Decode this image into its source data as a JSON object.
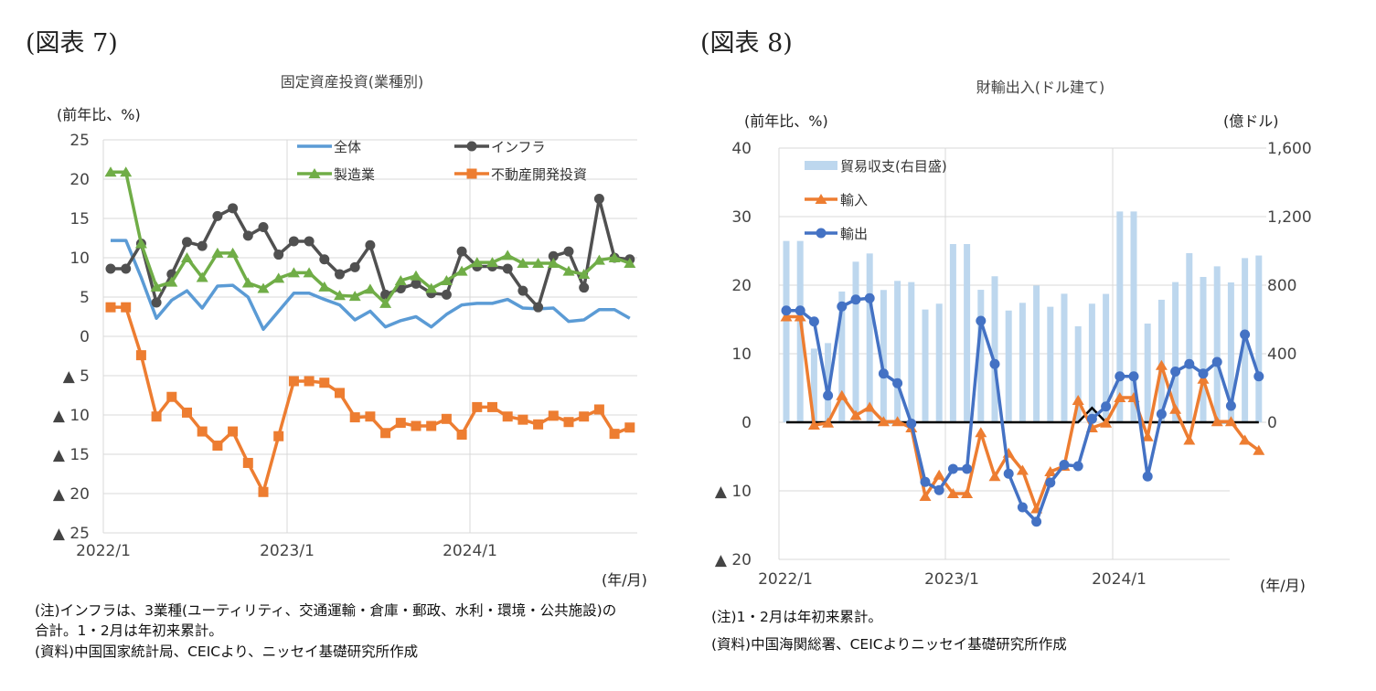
{
  "figure7": {
    "label": "(図表 7)",
    "notes": [
      "(注)インフラは、3業種(ユーティリティ、交通運輸・倉庫・郵政、水利・環境・公共施設)の",
      "合計。1・2月は年初来累計。",
      "(資料)中国国家統計局、CEICより、ニッセイ基礎研究所作成"
    ]
  },
  "figure8": {
    "label": "(図表 8)",
    "notes": [
      "(注)1・2月は年初来累計。",
      "(資料)中国海関総署、CEICよりニッセイ基礎研究所作成"
    ]
  },
  "chart_data": [
    {
      "type": "line",
      "title": "固定資産投資(業種別)",
      "ylabel": "(前年比、%)",
      "xlabel": "(年/月)",
      "ylim": [
        -25,
        25
      ],
      "yticks": [
        25,
        20,
        15,
        10,
        5,
        0,
        -5,
        -10,
        -15,
        -20,
        -25
      ],
      "ytick_labels": [
        "25",
        "20",
        "15",
        "10",
        "5",
        "0",
        "▲ 5",
        "▲ 10",
        "▲ 15",
        "▲ 20",
        "▲ 25"
      ],
      "xtick_labels": [
        "2022/1",
        "2023/1",
        "2024/1"
      ],
      "grid": true,
      "legend": "top",
      "categories": [
        "2022/1",
        "2022/2",
        "2022/3",
        "2022/4",
        "2022/5",
        "2022/6",
        "2022/7",
        "2022/8",
        "2022/9",
        "2022/10",
        "2022/11",
        "2022/12",
        "2023/1",
        "2023/2",
        "2023/3",
        "2023/4",
        "2023/5",
        "2023/6",
        "2023/7",
        "2023/8",
        "2023/9",
        "2023/10",
        "2023/11",
        "2023/12",
        "2024/1",
        "2024/2",
        "2024/3",
        "2024/4",
        "2024/5",
        "2024/6",
        "2024/7",
        "2024/8",
        "2024/9",
        "2024/10",
        "2024/11"
      ],
      "series": [
        {
          "name": "全体",
          "color": "#5b9bd5",
          "marker": "none",
          "values": [
            12.2,
            12.2,
            7.5,
            2.3,
            4.6,
            5.8,
            3.6,
            6.4,
            6.5,
            5.0,
            0.9,
            3.2,
            5.5,
            5.5,
            4.7,
            4.0,
            2.1,
            3.2,
            1.2,
            2.0,
            2.5,
            1.2,
            2.8,
            4.0,
            4.2,
            4.2,
            4.7,
            3.6,
            3.5,
            3.6,
            1.9,
            2.1,
            3.4,
            3.4,
            2.3
          ]
        },
        {
          "name": "インフラ",
          "color": "#505050",
          "marker": "circle",
          "values": [
            8.6,
            8.6,
            11.8,
            4.3,
            7.9,
            12.0,
            11.5,
            15.3,
            16.3,
            12.8,
            13.9,
            10.4,
            12.1,
            12.1,
            9.8,
            7.9,
            8.8,
            11.6,
            5.3,
            6.1,
            6.7,
            5.5,
            5.3,
            10.8,
            8.9,
            8.9,
            8.6,
            5.8,
            3.7,
            10.2,
            10.8,
            6.2,
            17.5,
            10.0,
            9.8
          ]
        },
        {
          "name": "製造業",
          "color": "#70ad47",
          "marker": "triangle",
          "values": [
            20.9,
            20.9,
            11.8,
            6.3,
            6.9,
            10.0,
            7.5,
            10.6,
            10.6,
            6.8,
            6.1,
            7.4,
            8.1,
            8.1,
            6.3,
            5.2,
            5.1,
            6.0,
            4.2,
            7.1,
            7.7,
            6.1,
            7.1,
            8.3,
            9.4,
            9.4,
            10.3,
            9.3,
            9.3,
            9.3,
            8.3,
            7.9,
            9.7,
            10.0,
            9.3
          ]
        },
        {
          "name": "不動産開発投資",
          "color": "#ed7d31",
          "marker": "square",
          "values": [
            3.7,
            3.7,
            -2.4,
            -10.2,
            -7.7,
            -9.7,
            -12.1,
            -13.9,
            -12.1,
            -16.1,
            -19.8,
            -12.7,
            -5.7,
            -5.7,
            -5.9,
            -7.2,
            -10.3,
            -10.2,
            -12.3,
            -11.0,
            -11.4,
            -11.4,
            -10.5,
            -12.5,
            -9.0,
            -9.0,
            -10.2,
            -10.6,
            -11.2,
            -10.1,
            -10.9,
            -10.2,
            -9.3,
            -12.4,
            -11.6
          ]
        }
      ]
    },
    {
      "type": "bar+line",
      "title": "財輸出入(ドル建て)",
      "ylabel": "(前年比、%)",
      "y2label": "(億ドル)",
      "xlabel": "(年/月)",
      "ylim": [
        -20,
        40
      ],
      "y2lim": [
        -800,
        1600
      ],
      "yticks": [
        40,
        30,
        20,
        10,
        0,
        -10,
        -20
      ],
      "ytick_labels": [
        "40",
        "30",
        "20",
        "10",
        "0",
        "▲ 10",
        "▲ 20"
      ],
      "y2ticks": [
        1600,
        1200,
        800,
        400,
        0
      ],
      "y2tick_labels": [
        "1,600",
        "1,200",
        "800",
        "400",
        "0"
      ],
      "xtick_labels": [
        "2022/1",
        "2023/1",
        "2024/1"
      ],
      "grid": true,
      "legend": "top-left",
      "categories": [
        "2022/1",
        "2022/2",
        "2022/3",
        "2022/4",
        "2022/5",
        "2022/6",
        "2022/7",
        "2022/8",
        "2022/9",
        "2022/10",
        "2022/11",
        "2022/12",
        "2023/1",
        "2023/2",
        "2023/3",
        "2023/4",
        "2023/5",
        "2023/6",
        "2023/7",
        "2023/8",
        "2023/9",
        "2023/10",
        "2023/11",
        "2023/12",
        "2024/1",
        "2024/2",
        "2024/3",
        "2024/4",
        "2024/5",
        "2024/6",
        "2024/7",
        "2024/8",
        "2024/9",
        "2024/10",
        "2024/11"
      ],
      "series": [
        {
          "name": "貿易収支(右目盛)",
          "type": "bar",
          "axis": "right",
          "color": "#bdd7ee",
          "values": [
            1058,
            1058,
            430,
            462,
            763,
            937,
            985,
            772,
            825,
            818,
            658,
            692,
            1040,
            1040,
            773,
            852,
            652,
            697,
            798,
            674,
            750,
            560,
            692,
            749,
            1230,
            1230,
            576,
            715,
            818,
            987,
            848,
            910,
            816,
            958,
            973
          ]
        },
        {
          "name": "輸入",
          "type": "line",
          "axis": "left",
          "color": "#ed7d31",
          "marker": "triangle",
          "values": [
            15.4,
            15.4,
            -0.4,
            -0.1,
            3.9,
            1.0,
            2.2,
            0.1,
            0.1,
            -0.8,
            -10.8,
            -7.7,
            -10.4,
            -10.4,
            -1.5,
            -7.9,
            -4.5,
            -7.0,
            -12.6,
            -7.2,
            -6.4,
            3.2,
            -0.8,
            -0.1,
            3.6,
            3.6,
            -2.1,
            8.3,
            1.9,
            -2.6,
            6.3,
            0.1,
            0.1,
            -2.6,
            -4.1
          ]
        },
        {
          "name": "輸出",
          "type": "line",
          "axis": "left",
          "color": "#4472c4",
          "marker": "circle",
          "values": [
            16.3,
            16.3,
            14.7,
            3.9,
            16.9,
            17.9,
            18.1,
            7.1,
            5.7,
            -0.2,
            -8.7,
            -9.9,
            -6.8,
            -6.8,
            14.8,
            8.5,
            -7.5,
            -12.4,
            -14.5,
            -8.8,
            -6.2,
            -6.4,
            0.5,
            2.3,
            6.7,
            6.7,
            -7.9,
            1.2,
            7.4,
            8.5,
            7.1,
            8.8,
            2.4,
            12.8,
            6.7
          ]
        }
      ],
      "baseline": {
        "color": "#000000",
        "values": [
          0,
          0,
          0,
          0,
          0,
          0,
          0,
          0,
          0,
          0,
          0,
          0,
          0,
          0,
          0,
          0,
          0,
          0,
          0,
          0,
          0,
          0,
          2.1,
          0,
          0,
          0,
          0,
          0,
          0,
          0,
          0,
          0,
          0,
          0,
          0
        ]
      }
    }
  ]
}
